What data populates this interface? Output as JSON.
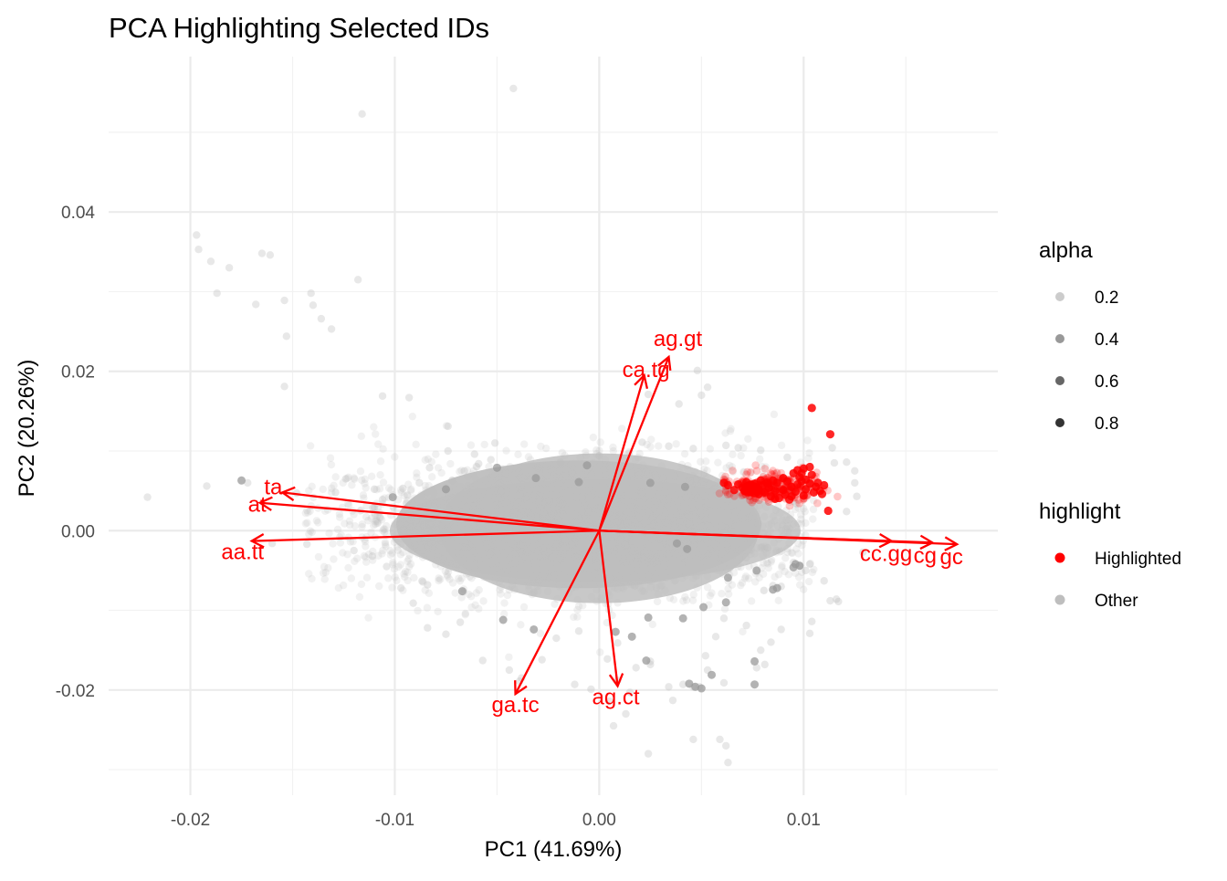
{
  "chart_data": {
    "type": "scatter",
    "title": "PCA Highlighting Selected IDs",
    "xlabel": "PC1 (41.69%)",
    "ylabel": "PC2 (20.26%)",
    "xlim": [
      -0.024,
      0.0195
    ],
    "ylim": [
      -0.0332,
      0.0595
    ],
    "x_ticks": [
      -0.02,
      -0.01,
      0.0,
      0.01
    ],
    "x_tick_labels": [
      "-0.02",
      "-0.01",
      "0.00",
      "0.01"
    ],
    "y_ticks": [
      -0.02,
      0.0,
      0.02,
      0.04
    ],
    "y_tick_labels": [
      "-0.02",
      "0.00",
      "0.02",
      "0.04"
    ],
    "grid": true,
    "colors": {
      "highlighted": "#ff0000",
      "other": "#bebebe",
      "arrow": "#ff0000"
    },
    "legend_alpha": {
      "title": "alpha",
      "placement": "right",
      "entries": [
        {
          "label": "0.2",
          "alpha": 0.2
        },
        {
          "label": "0.4",
          "alpha": 0.4
        },
        {
          "label": "0.6",
          "alpha": 0.6
        },
        {
          "label": "0.8",
          "alpha": 0.8
        }
      ]
    },
    "legend_highlight": {
      "title": "highlight",
      "placement": "right",
      "entries": [
        {
          "label": "Highlighted",
          "color": "#ff0000"
        },
        {
          "label": "Other",
          "color": "#bebebe"
        }
      ]
    },
    "loadings": [
      {
        "label": "ag.gt",
        "x": 0.0034,
        "y": 0.0218
      },
      {
        "label": "ca.tg",
        "x": 0.0022,
        "y": 0.0195
      },
      {
        "label": "ta",
        "x": -0.0155,
        "y": 0.0048
      },
      {
        "label": "at",
        "x": -0.0166,
        "y": 0.0035
      },
      {
        "label": "aa.tt",
        "x": -0.017,
        "y": -0.0013
      },
      {
        "label": "cc.gg",
        "x": 0.0143,
        "y": -0.0013
      },
      {
        "label": "cg",
        "x": 0.0163,
        "y": -0.0015
      },
      {
        "label": "gc",
        "x": 0.0175,
        "y": -0.0017
      },
      {
        "label": "ag.ct",
        "x": 0.0009,
        "y": -0.0195
      },
      {
        "label": "ga.tc",
        "x": -0.0041,
        "y": -0.0205
      }
    ],
    "other_outliers": [
      [
        -0.0096,
        0.0053
      ],
      [
        -0.011,
        0.0052
      ],
      [
        -0.0129,
        0.0048
      ],
      [
        -0.0148,
        0.0047
      ],
      [
        -0.0172,
        0.006
      ],
      [
        -0.0192,
        0.0056
      ],
      [
        -0.0221,
        0.0042
      ],
      [
        -0.0124,
        0.0065
      ],
      [
        -0.0106,
        0.0039
      ],
      [
        -0.0088,
        0.006
      ],
      [
        -0.0083,
        0.0079
      ],
      [
        -0.0074,
        0.01
      ],
      [
        -0.0051,
        0.011
      ],
      [
        -0.0093,
        0.0167
      ],
      [
        -0.0106,
        0.0169
      ],
      [
        -0.0154,
        0.0181
      ],
      [
        -0.0042,
        0.0555
      ],
      [
        -0.0116,
        0.0523
      ],
      [
        -0.0197,
        0.0371
      ],
      [
        -0.0196,
        0.0353
      ],
      [
        -0.019,
        0.0338
      ],
      [
        -0.0181,
        0.033
      ],
      [
        -0.0165,
        0.0348
      ],
      [
        -0.0161,
        0.0346
      ],
      [
        -0.0118,
        0.0315
      ],
      [
        -0.0187,
        0.0298
      ],
      [
        -0.0141,
        0.0298
      ],
      [
        -0.0168,
        0.0284
      ],
      [
        -0.0154,
        0.0289
      ],
      [
        -0.014,
        0.0283
      ],
      [
        -0.0136,
        0.0266
      ],
      [
        -0.0131,
        0.0253
      ],
      [
        -0.0153,
        0.0244
      ],
      [
        -0.0074,
        0.0131
      ],
      [
        -0.0061,
        0.0096
      ],
      [
        0.0048,
        0.0201
      ],
      [
        0.0053,
        0.018
      ],
      [
        0.0024,
        0.0171
      ],
      [
        0.0039,
        0.0159
      ],
      [
        0.005,
        0.017
      ],
      [
        0.0092,
        0.0092
      ],
      [
        0.0114,
        0.0104
      ],
      [
        0.0121,
        0.0086
      ],
      [
        0.0125,
        0.0075
      ],
      [
        0.0115,
        0.0085
      ],
      [
        0.0125,
        0.006
      ],
      [
        0.0126,
        0.0043
      ],
      [
        0.0121,
        0.0024
      ],
      [
        0.0129,
        -0.0027
      ],
      [
        0.0103,
        -0.0042
      ],
      [
        0.0101,
        -0.005
      ],
      [
        0.0113,
        -0.0088
      ],
      [
        0.0117,
        -0.0089
      ],
      [
        0.0104,
        -0.0114
      ],
      [
        0.0103,
        -0.0129
      ],
      [
        0.0089,
        -0.0124
      ],
      [
        0.0084,
        -0.014
      ],
      [
        0.0079,
        -0.015
      ],
      [
        0.0081,
        -0.0168
      ],
      [
        0.0077,
        -0.0172
      ],
      [
        0.0061,
        -0.0191
      ],
      [
        0.0053,
        -0.0175
      ],
      [
        0.0049,
        -0.0196
      ],
      [
        0.0046,
        -0.0196
      ],
      [
        0.0041,
        -0.0193
      ],
      [
        0.0036,
        -0.0213
      ],
      [
        0.0046,
        -0.0262
      ],
      [
        0.0062,
        -0.027
      ],
      [
        0.0059,
        -0.0262
      ],
      [
        0.0063,
        -0.0291
      ],
      [
        0.0024,
        -0.028
      ],
      [
        0.0013,
        -0.023
      ],
      [
        0.0007,
        -0.0245
      ],
      [
        0.0005,
        -0.0214
      ],
      [
        0.0015,
        -0.0203
      ],
      [
        0.0009,
        -0.0188
      ],
      [
        0.0025,
        -0.0164
      ],
      [
        0.0034,
        -0.0196
      ],
      [
        -0.0004,
        -0.0199
      ],
      [
        -0.0012,
        -0.0193
      ],
      [
        -0.0028,
        -0.0162
      ],
      [
        -0.0039,
        -0.0189
      ],
      [
        -0.0044,
        -0.0175
      ],
      [
        -0.0057,
        -0.0163
      ],
      [
        -0.0038,
        -0.0185
      ],
      [
        -0.0021,
        -0.0135
      ],
      [
        -0.0068,
        -0.0115
      ],
      [
        -0.0075,
        -0.013
      ],
      [
        -0.0084,
        -0.0122
      ],
      [
        -0.0097,
        -0.0072
      ],
      [
        -0.0104,
        -0.0045
      ],
      [
        -0.0111,
        -0.0032
      ],
      [
        -0.012,
        -0.0025
      ],
      [
        -0.0143,
        -0.0017
      ],
      [
        -0.016,
        -0.0016
      ],
      [
        -0.0091,
        -0.0091
      ],
      [
        -0.0084,
        -0.0068
      ],
      [
        0.0095,
        -0.004
      ],
      [
        0.0098,
        -0.0044
      ],
      [
        0.011,
        -0.0063
      ],
      [
        0.0116,
        -0.0086
      ],
      [
        0.0089,
        -0.007
      ],
      [
        0.0085,
        -0.0069
      ],
      [
        0.0061,
        -0.011
      ],
      [
        0.0072,
        -0.0119
      ],
      [
        0.0057,
        -0.0133
      ],
      [
        0.0004,
        -0.0161
      ],
      [
        -0.001,
        -0.0126
      ],
      [
        0.0009,
        -0.0141
      ],
      [
        0.0025,
        -0.0168
      ],
      [
        0.0018,
        -0.0172
      ],
      [
        0.0052,
        -0.0157
      ],
      [
        -0.0072,
        0.0063
      ],
      [
        -0.0066,
        0.0075
      ],
      [
        -0.0059,
        0.0084
      ],
      [
        -0.0053,
        0.0089
      ],
      [
        -0.0019,
        0.0086
      ],
      [
        0.0,
        0.0094
      ],
      [
        0.0021,
        0.0111
      ],
      [
        0.0034,
        0.0106
      ],
      [
        0.0046,
        0.0103
      ],
      [
        0.0062,
        0.0107
      ],
      [
        0.0068,
        0.0104
      ],
      [
        0.0079,
        0.0101
      ]
    ],
    "other_dark": [
      [
        -0.0175,
        0.0063
      ],
      [
        -0.0101,
        0.0042
      ],
      [
        -0.0075,
        0.0052
      ],
      [
        -0.005,
        0.0079
      ],
      [
        -0.0031,
        0.0066
      ],
      [
        -0.001,
        0.0061
      ],
      [
        0.0025,
        0.006
      ],
      [
        0.0042,
        0.0055
      ],
      [
        0.0038,
        -0.0016
      ],
      [
        0.0043,
        -0.0023
      ],
      [
        0.0063,
        -0.0059
      ],
      [
        0.0077,
        -0.005
      ],
      [
        0.0085,
        -0.0074
      ],
      [
        0.0087,
        -0.0072
      ],
      [
        0.0096,
        -0.0042
      ],
      [
        0.0098,
        -0.0044
      ],
      [
        0.0095,
        -0.0046
      ],
      [
        0.0062,
        -0.009
      ],
      [
        0.0051,
        -0.0096
      ],
      [
        0.0041,
        -0.011
      ],
      [
        0.0024,
        -0.0109
      ],
      [
        0.0016,
        -0.0133
      ],
      [
        0.0008,
        -0.0127
      ],
      [
        0.0023,
        -0.0163
      ],
      [
        0.0044,
        -0.0192
      ],
      [
        0.0047,
        -0.0196
      ],
      [
        0.005,
        -0.0198
      ],
      [
        0.0076,
        -0.0164
      ],
      [
        0.0076,
        -0.0193
      ],
      [
        0.0055,
        -0.0181
      ],
      [
        -0.0032,
        -0.0124
      ],
      [
        -0.0047,
        -0.0112
      ],
      [
        -0.0067,
        -0.0076
      ],
      [
        -0.0006,
        0.0082
      ]
    ],
    "highlighted": [
      [
        0.0104,
        0.0154
      ],
      [
        0.0113,
        0.0121
      ],
      [
        0.0112,
        0.0025
      ],
      [
        0.0087,
        0.006
      ],
      [
        0.0092,
        0.0062
      ],
      [
        0.0099,
        0.0072
      ],
      [
        0.01,
        0.0078
      ],
      [
        0.0104,
        0.007
      ],
      [
        0.0101,
        0.0064
      ],
      [
        0.0097,
        0.0058
      ],
      [
        0.0094,
        0.0055
      ],
      [
        0.009,
        0.0051
      ],
      [
        0.0086,
        0.005
      ],
      [
        0.0083,
        0.0054
      ],
      [
        0.008,
        0.0057
      ],
      [
        0.0076,
        0.0059
      ],
      [
        0.0073,
        0.0056
      ],
      [
        0.007,
        0.0054
      ],
      [
        0.0068,
        0.0058
      ],
      [
        0.0066,
        0.0051
      ],
      [
        0.0063,
        0.0057
      ],
      [
        0.0075,
        0.005
      ],
      [
        0.0078,
        0.0046
      ],
      [
        0.0081,
        0.0048
      ],
      [
        0.0084,
        0.0043
      ],
      [
        0.0088,
        0.0041
      ],
      [
        0.0091,
        0.0045
      ],
      [
        0.0094,
        0.0043
      ],
      [
        0.0096,
        0.0049
      ],
      [
        0.0101,
        0.0052
      ],
      [
        0.0106,
        0.0055
      ],
      [
        0.0108,
        0.005
      ],
      [
        0.011,
        0.0057
      ],
      [
        0.0107,
        0.006
      ],
      [
        0.0103,
        0.0059
      ],
      [
        0.0098,
        0.0067
      ],
      [
        0.0095,
        0.0072
      ],
      [
        0.009,
        0.0066
      ],
      [
        0.0085,
        0.0063
      ],
      [
        0.0082,
        0.006
      ],
      [
        0.0079,
        0.0063
      ],
      [
        0.0072,
        0.0061
      ],
      [
        0.0061,
        0.006
      ],
      [
        0.0086,
        0.004
      ],
      [
        0.0093,
        0.0039
      ],
      [
        0.01,
        0.0044
      ],
      [
        0.0105,
        0.0048
      ],
      [
        0.0078,
        0.0052
      ],
      [
        0.0074,
        0.0052
      ],
      [
        0.0071,
        0.005
      ],
      [
        0.0099,
        0.0062
      ],
      [
        0.0103,
        0.008
      ],
      [
        0.0097,
        0.0076
      ],
      [
        0.0109,
        0.0046
      ]
    ]
  }
}
